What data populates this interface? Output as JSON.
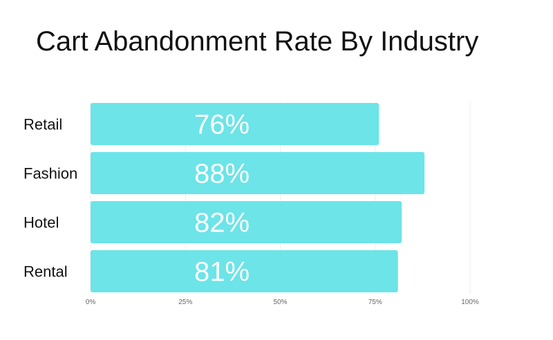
{
  "chart_data": {
    "type": "bar",
    "orientation": "horizontal",
    "title": "Cart Abandonment Rate By Industry",
    "categories": [
      "Retail",
      "Fashion",
      "Hotel",
      "Rental"
    ],
    "values": [
      76,
      88,
      82,
      81
    ],
    "value_labels": [
      "76%",
      "88%",
      "82%",
      "81%"
    ],
    "xlim": [
      0,
      100
    ],
    "x_ticks": [
      0,
      25,
      50,
      75,
      100
    ],
    "x_tick_labels": [
      "0%",
      "25%",
      "50%",
      "75%",
      "100%"
    ],
    "xlabel": "",
    "ylabel": "",
    "grid": true,
    "legend": false,
    "bar_color": "#6ce4e8",
    "grid_color": "#eeeeee"
  }
}
